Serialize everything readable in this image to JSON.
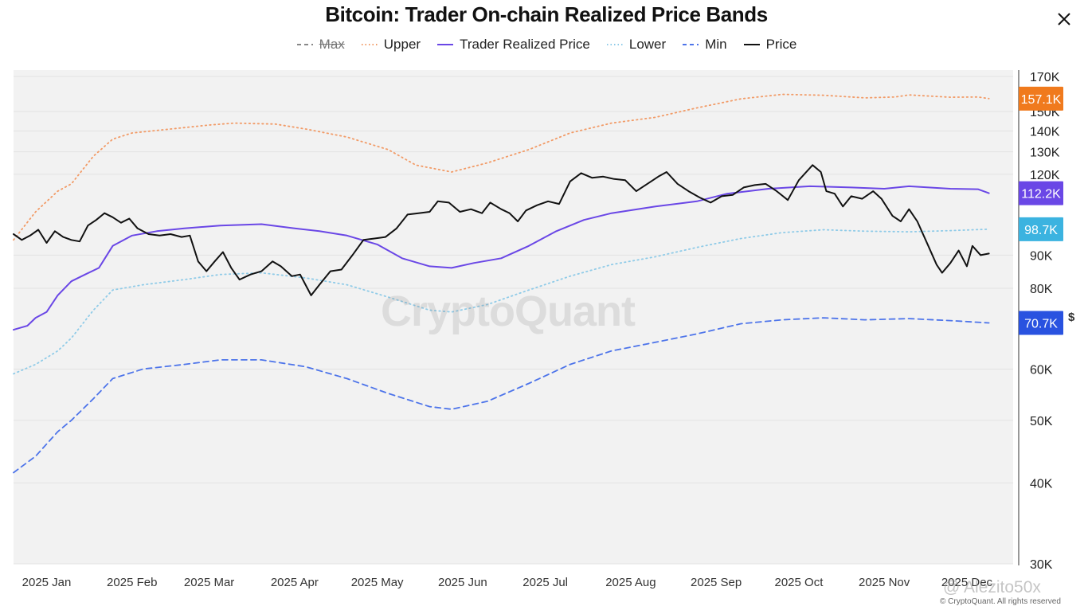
{
  "chart_data": {
    "type": "line",
    "title": "Bitcoin: Trader On-chain Realized Price Bands",
    "legend": [
      {
        "label": "Max",
        "style": "dashed",
        "color": "#888888",
        "disabled": true
      },
      {
        "label": "Upper",
        "style": "dotted",
        "color": "#f29b67",
        "disabled": false
      },
      {
        "label": "Trader Realized Price",
        "style": "solid",
        "color": "#6a47e6",
        "disabled": false
      },
      {
        "label": "Lower",
        "style": "dotted",
        "color": "#8fcbe8",
        "disabled": false
      },
      {
        "label": "Min",
        "style": "dashed",
        "color": "#4d74ea",
        "disabled": false
      },
      {
        "label": "Price",
        "style": "solid",
        "color": "#111111",
        "disabled": false
      }
    ],
    "x_ticks": [
      "2025 Jan",
      "2025 Feb",
      "2025 Mar",
      "2025 Apr",
      "2025 May",
      "2025 Jun",
      "2025 Jul",
      "2025 Aug",
      "2025 Sep",
      "2025 Oct",
      "2025 Nov",
      "2025 Dec"
    ],
    "x_range": [
      "2024-12-20",
      "2025-12-12"
    ],
    "y_scale": "log",
    "y_ticks": [
      {
        "value": 30000,
        "label": "30K"
      },
      {
        "value": 40000,
        "label": "40K"
      },
      {
        "value": 50000,
        "label": "50K"
      },
      {
        "value": 60000,
        "label": "60K"
      },
      {
        "value": 80000,
        "label": "80K"
      },
      {
        "value": 90000,
        "label": "90K"
      },
      {
        "value": 120000,
        "label": "120K"
      },
      {
        "value": 130000,
        "label": "130K"
      },
      {
        "value": 140000,
        "label": "140K"
      },
      {
        "value": 150000,
        "label": "150K"
      },
      {
        "value": 170000,
        "label": "170K"
      }
    ],
    "ylim": [
      30000,
      172000
    ],
    "last_value_badges": [
      {
        "label": "157.1K",
        "value": 157100,
        "color": "#f07a1d"
      },
      {
        "label": "112.2K",
        "value": 112200,
        "color": "#6a47e6"
      },
      {
        "label": "98.7K",
        "value": 98700,
        "color": "#3bb3e0"
      },
      {
        "label": "70.7K",
        "value": 70700,
        "color": "#2952e0"
      }
    ],
    "series": [
      {
        "name": "Upper",
        "color": "#f29b67",
        "style": "dotted",
        "points": [
          [
            "2024-12-20",
            95000
          ],
          [
            "2024-12-28",
            105000
          ],
          [
            "2025-01-05",
            113000
          ],
          [
            "2025-01-10",
            116000
          ],
          [
            "2025-01-18",
            128000
          ],
          [
            "2025-01-25",
            136000
          ],
          [
            "2025-02-01",
            139000
          ],
          [
            "2025-02-15",
            141000
          ],
          [
            "2025-03-01",
            143000
          ],
          [
            "2025-03-10",
            144000
          ],
          [
            "2025-03-25",
            143500
          ],
          [
            "2025-04-05",
            141000
          ],
          [
            "2025-04-20",
            137000
          ],
          [
            "2025-05-05",
            131000
          ],
          [
            "2025-05-15",
            124000
          ],
          [
            "2025-05-28",
            121000
          ],
          [
            "2025-06-10",
            125000
          ],
          [
            "2025-06-25",
            131000
          ],
          [
            "2025-07-10",
            139000
          ],
          [
            "2025-07-25",
            144000
          ],
          [
            "2025-08-10",
            147000
          ],
          [
            "2025-08-25",
            152000
          ],
          [
            "2025-09-10",
            157000
          ],
          [
            "2025-09-25",
            159500
          ],
          [
            "2025-10-10",
            159000
          ],
          [
            "2025-10-25",
            157500
          ],
          [
            "2025-11-05",
            158000
          ],
          [
            "2025-11-10",
            159200
          ],
          [
            "2025-11-25",
            157900
          ],
          [
            "2025-12-05",
            158000
          ],
          [
            "2025-12-09",
            157100
          ]
        ]
      },
      {
        "name": "Trader Realized Price",
        "color": "#6a47e6",
        "style": "solid",
        "points": [
          [
            "2024-12-20",
            69000
          ],
          [
            "2024-12-25",
            70000
          ],
          [
            "2024-12-28",
            72000
          ],
          [
            "2025-01-01",
            73500
          ],
          [
            "2025-01-05",
            78000
          ],
          [
            "2025-01-10",
            82000
          ],
          [
            "2025-01-15",
            84000
          ],
          [
            "2025-01-20",
            86000
          ],
          [
            "2025-01-25",
            93000
          ],
          [
            "2025-02-01",
            96500
          ],
          [
            "2025-02-10",
            98000
          ],
          [
            "2025-02-20",
            99000
          ],
          [
            "2025-03-05",
            100000
          ],
          [
            "2025-03-20",
            100500
          ],
          [
            "2025-04-01",
            99000
          ],
          [
            "2025-04-10",
            98000
          ],
          [
            "2025-04-20",
            96500
          ],
          [
            "2025-05-01",
            93500
          ],
          [
            "2025-05-10",
            89000
          ],
          [
            "2025-05-20",
            86500
          ],
          [
            "2025-05-28",
            86000
          ],
          [
            "2025-06-05",
            87500
          ],
          [
            "2025-06-15",
            89000
          ],
          [
            "2025-06-25",
            93000
          ],
          [
            "2025-07-05",
            98000
          ],
          [
            "2025-07-15",
            102000
          ],
          [
            "2025-07-25",
            104500
          ],
          [
            "2025-08-10",
            107000
          ],
          [
            "2025-08-25",
            109000
          ],
          [
            "2025-09-05",
            112000
          ],
          [
            "2025-09-20",
            114000
          ],
          [
            "2025-10-05",
            115000
          ],
          [
            "2025-10-20",
            114500
          ],
          [
            "2025-11-01",
            114000
          ],
          [
            "2025-11-10",
            115000
          ],
          [
            "2025-11-25",
            114000
          ],
          [
            "2025-12-05",
            113800
          ],
          [
            "2025-12-09",
            112200
          ]
        ]
      },
      {
        "name": "Lower",
        "color": "#8fcbe8",
        "style": "dotted",
        "points": [
          [
            "2024-12-20",
            59000
          ],
          [
            "2024-12-28",
            61000
          ],
          [
            "2025-01-05",
            64000
          ],
          [
            "2025-01-10",
            67000
          ],
          [
            "2025-01-18",
            74000
          ],
          [
            "2025-01-25",
            79500
          ],
          [
            "2025-02-05",
            81000
          ],
          [
            "2025-02-20",
            82500
          ],
          [
            "2025-03-05",
            84000
          ],
          [
            "2025-03-20",
            84500
          ],
          [
            "2025-04-05",
            83000
          ],
          [
            "2025-04-20",
            81000
          ],
          [
            "2025-05-05",
            77500
          ],
          [
            "2025-05-20",
            74000
          ],
          [
            "2025-05-28",
            73500
          ],
          [
            "2025-06-10",
            75500
          ],
          [
            "2025-06-25",
            79500
          ],
          [
            "2025-07-10",
            83500
          ],
          [
            "2025-07-25",
            87000
          ],
          [
            "2025-08-10",
            89500
          ],
          [
            "2025-08-25",
            92500
          ],
          [
            "2025-09-10",
            95500
          ],
          [
            "2025-09-25",
            97500
          ],
          [
            "2025-10-10",
            98500
          ],
          [
            "2025-10-25",
            98000
          ],
          [
            "2025-11-10",
            97800
          ],
          [
            "2025-11-25",
            98200
          ],
          [
            "2025-12-09",
            98700
          ]
        ]
      },
      {
        "name": "Min",
        "color": "#4d74ea",
        "style": "dashed",
        "points": [
          [
            "2024-12-20",
            41500
          ],
          [
            "2024-12-28",
            44000
          ],
          [
            "2025-01-05",
            48000
          ],
          [
            "2025-01-10",
            50000
          ],
          [
            "2025-01-18",
            54000
          ],
          [
            "2025-01-25",
            58000
          ],
          [
            "2025-02-05",
            60000
          ],
          [
            "2025-02-20",
            61000
          ],
          [
            "2025-03-05",
            62000
          ],
          [
            "2025-03-20",
            62000
          ],
          [
            "2025-04-05",
            60500
          ],
          [
            "2025-04-20",
            58000
          ],
          [
            "2025-05-05",
            55000
          ],
          [
            "2025-05-20",
            52500
          ],
          [
            "2025-05-28",
            52000
          ],
          [
            "2025-06-10",
            53500
          ],
          [
            "2025-06-25",
            57000
          ],
          [
            "2025-07-10",
            61000
          ],
          [
            "2025-07-25",
            64000
          ],
          [
            "2025-08-10",
            66000
          ],
          [
            "2025-08-25",
            68000
          ],
          [
            "2025-09-10",
            70500
          ],
          [
            "2025-09-25",
            71500
          ],
          [
            "2025-10-10",
            72000
          ],
          [
            "2025-10-25",
            71500
          ],
          [
            "2025-11-10",
            71800
          ],
          [
            "2025-11-25",
            71300
          ],
          [
            "2025-12-09",
            70700
          ]
        ]
      },
      {
        "name": "Price",
        "color": "#111111",
        "style": "solid",
        "points": [
          [
            "2024-12-20",
            97000
          ],
          [
            "2024-12-23",
            95000
          ],
          [
            "2024-12-26",
            96500
          ],
          [
            "2024-12-29",
            98500
          ],
          [
            "2025-01-01",
            94000
          ],
          [
            "2025-01-04",
            98000
          ],
          [
            "2025-01-07",
            96000
          ],
          [
            "2025-01-10",
            95000
          ],
          [
            "2025-01-13",
            94500
          ],
          [
            "2025-01-16",
            100000
          ],
          [
            "2025-01-19",
            102000
          ],
          [
            "2025-01-22",
            104500
          ],
          [
            "2025-01-25",
            103000
          ],
          [
            "2025-01-28",
            101000
          ],
          [
            "2025-01-31",
            102500
          ],
          [
            "2025-02-03",
            99000
          ],
          [
            "2025-02-07",
            97000
          ],
          [
            "2025-02-11",
            96500
          ],
          [
            "2025-02-15",
            97000
          ],
          [
            "2025-02-19",
            96000
          ],
          [
            "2025-02-22",
            96500
          ],
          [
            "2025-02-25",
            88000
          ],
          [
            "2025-02-28",
            85000
          ],
          [
            "2025-03-03",
            88000
          ],
          [
            "2025-03-06",
            91000
          ],
          [
            "2025-03-09",
            86000
          ],
          [
            "2025-03-12",
            82500
          ],
          [
            "2025-03-16",
            84000
          ],
          [
            "2025-03-20",
            85000
          ],
          [
            "2025-03-24",
            88000
          ],
          [
            "2025-03-27",
            86500
          ],
          [
            "2025-03-31",
            83500
          ],
          [
            "2025-04-03",
            84000
          ],
          [
            "2025-04-07",
            78000
          ],
          [
            "2025-04-10",
            81000
          ],
          [
            "2025-04-14",
            85000
          ],
          [
            "2025-04-18",
            85500
          ],
          [
            "2025-04-22",
            90000
          ],
          [
            "2025-04-26",
            95000
          ],
          [
            "2025-04-30",
            95500
          ],
          [
            "2025-05-04",
            96000
          ],
          [
            "2025-05-08",
            99000
          ],
          [
            "2025-05-12",
            104000
          ],
          [
            "2025-05-16",
            104500
          ],
          [
            "2025-05-20",
            105000
          ],
          [
            "2025-05-23",
            109000
          ],
          [
            "2025-05-27",
            108500
          ],
          [
            "2025-05-31",
            105000
          ],
          [
            "2025-06-04",
            106000
          ],
          [
            "2025-06-08",
            104500
          ],
          [
            "2025-06-11",
            108500
          ],
          [
            "2025-06-15",
            106000
          ],
          [
            "2025-06-18",
            104500
          ],
          [
            "2025-06-21",
            101500
          ],
          [
            "2025-06-24",
            105500
          ],
          [
            "2025-06-28",
            107500
          ],
          [
            "2025-07-02",
            109000
          ],
          [
            "2025-07-06",
            108000
          ],
          [
            "2025-07-10",
            117000
          ],
          [
            "2025-07-14",
            120500
          ],
          [
            "2025-07-18",
            118500
          ],
          [
            "2025-07-22",
            119000
          ],
          [
            "2025-07-26",
            118000
          ],
          [
            "2025-07-30",
            117500
          ],
          [
            "2025-08-03",
            113000
          ],
          [
            "2025-08-07",
            116000
          ],
          [
            "2025-08-11",
            119000
          ],
          [
            "2025-08-14",
            121000
          ],
          [
            "2025-08-18",
            116000
          ],
          [
            "2025-08-22",
            113000
          ],
          [
            "2025-08-26",
            110500
          ],
          [
            "2025-08-30",
            108500
          ],
          [
            "2025-09-03",
            111000
          ],
          [
            "2025-09-07",
            111500
          ],
          [
            "2025-09-11",
            114500
          ],
          [
            "2025-09-15",
            115500
          ],
          [
            "2025-09-19",
            116000
          ],
          [
            "2025-09-23",
            113000
          ],
          [
            "2025-09-27",
            109500
          ],
          [
            "2025-10-01",
            117500
          ],
          [
            "2025-10-06",
            124000
          ],
          [
            "2025-10-09",
            121000
          ],
          [
            "2025-10-11",
            113000
          ],
          [
            "2025-10-14",
            112000
          ],
          [
            "2025-10-17",
            107000
          ],
          [
            "2025-10-20",
            111000
          ],
          [
            "2025-10-24",
            110000
          ],
          [
            "2025-10-28",
            113000
          ],
          [
            "2025-10-31",
            110000
          ],
          [
            "2025-11-04",
            103500
          ],
          [
            "2025-11-07",
            101500
          ],
          [
            "2025-11-10",
            106000
          ],
          [
            "2025-11-13",
            101500
          ],
          [
            "2025-11-17",
            93000
          ],
          [
            "2025-11-20",
            87000
          ],
          [
            "2025-11-22",
            84500
          ],
          [
            "2025-11-25",
            87500
          ],
          [
            "2025-11-28",
            91500
          ],
          [
            "2025-12-01",
            86500
          ],
          [
            "2025-12-03",
            93000
          ],
          [
            "2025-12-06",
            90000
          ],
          [
            "2025-12-09",
            90500
          ]
        ]
      }
    ],
    "watermark": "CryptoQuant",
    "grid": true
  },
  "ui": {
    "close_icon": "close-icon",
    "currency_toggle_icon": "dollar-toggle-icon",
    "currency_symbol": "$"
  },
  "footer": {
    "copyright": "© CryptoQuant. All rights reserved",
    "overlay_handle": "@ Alezito50x"
  }
}
